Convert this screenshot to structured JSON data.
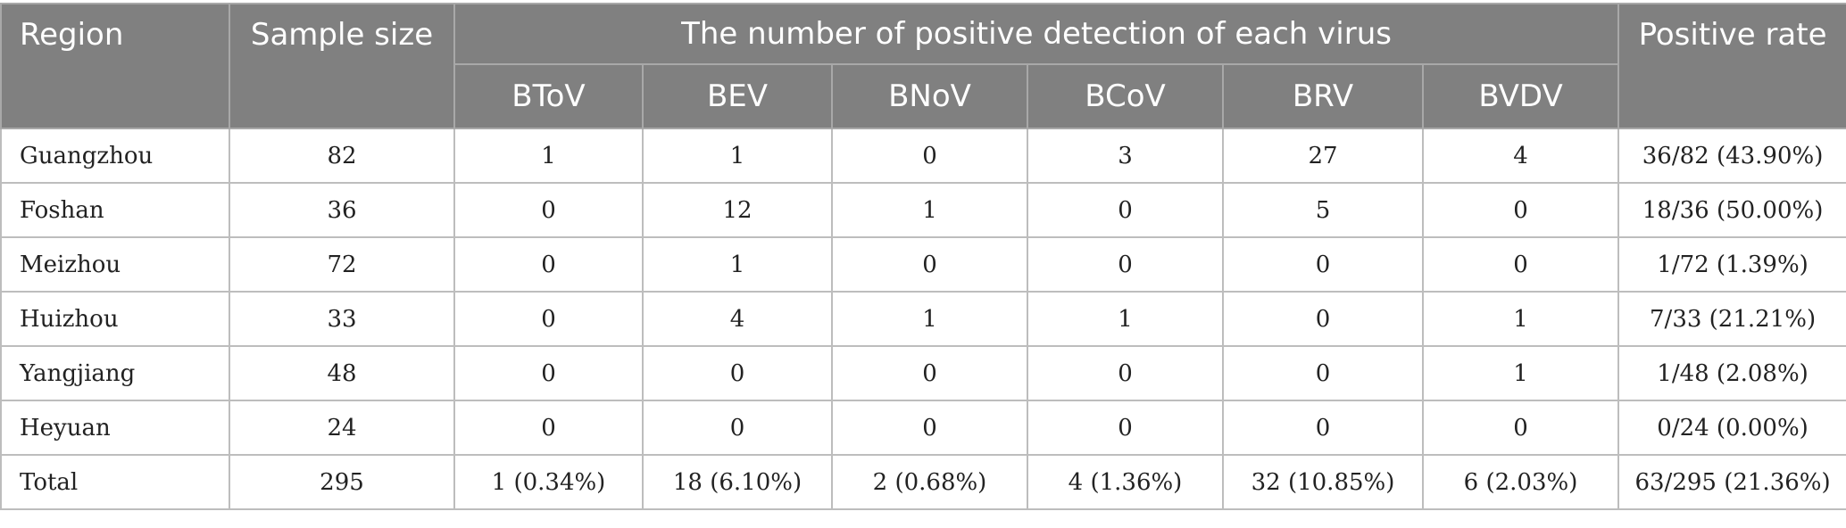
{
  "table": {
    "headers": {
      "region": "Region",
      "sample_size": "Sample size",
      "group": "The number of positive detection of each virus",
      "positive_rate": "Positive rate",
      "viruses": [
        "BToV",
        "BEV",
        "BNoV",
        "BCoV",
        "BRV",
        "BVDV"
      ]
    },
    "rows": [
      {
        "region": "Guangzhou",
        "sample_size": "82",
        "values": [
          "1",
          "1",
          "0",
          "3",
          "27",
          "4"
        ],
        "positive_rate": "36/82 (43.90%)"
      },
      {
        "region": "Foshan",
        "sample_size": "36",
        "values": [
          "0",
          "12",
          "1",
          "0",
          "5",
          "0"
        ],
        "positive_rate": "18/36 (50.00%)"
      },
      {
        "region": "Meizhou",
        "sample_size": "72",
        "values": [
          "0",
          "1",
          "0",
          "0",
          "0",
          "0"
        ],
        "positive_rate": "1/72 (1.39%)"
      },
      {
        "region": "Huizhou",
        "sample_size": "33",
        "values": [
          "0",
          "4",
          "1",
          "1",
          "0",
          "1"
        ],
        "positive_rate": "7/33 (21.21%)"
      },
      {
        "region": "Yangjiang",
        "sample_size": "48",
        "values": [
          "0",
          "0",
          "0",
          "0",
          "0",
          "1"
        ],
        "positive_rate": "1/48 (2.08%)"
      },
      {
        "region": "Heyuan",
        "sample_size": "24",
        "values": [
          "0",
          "0",
          "0",
          "0",
          "0",
          "0"
        ],
        "positive_rate": "0/24 (0.00%)"
      },
      {
        "region": "Total",
        "sample_size": "295",
        "values": [
          "1 (0.34%)",
          "18 (6.10%)",
          "2 (0.68%)",
          "4 (1.36%)",
          "32 (10.85%)",
          "6 (2.03%)"
        ],
        "positive_rate": "63/295 (21.36%)"
      }
    ]
  }
}
